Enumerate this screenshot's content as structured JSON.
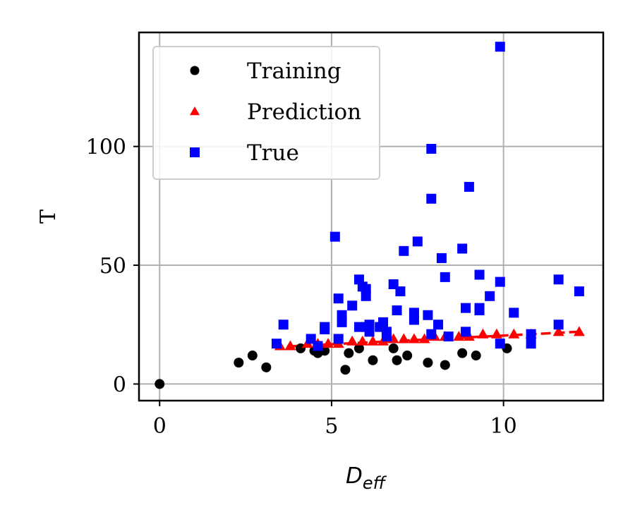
{
  "chart_data": {
    "type": "scatter",
    "xlabel": "D",
    "xlabel_sub": "eff",
    "ylabel": "T",
    "xlim": [
      -0.6,
      12.9
    ],
    "ylim": [
      -7,
      148
    ],
    "xticks": [
      0,
      5,
      10
    ],
    "yticks": [
      0,
      50,
      100
    ],
    "grid": true,
    "legend_position": "top-left",
    "series": [
      {
        "name": "Training",
        "marker": "circle",
        "color": "#000000",
        "points": [
          [
            0,
            0
          ],
          [
            2.3,
            9
          ],
          [
            2.7,
            12
          ],
          [
            3.1,
            7
          ],
          [
            4.1,
            15
          ],
          [
            4.5,
            14
          ],
          [
            4.6,
            13
          ],
          [
            4.8,
            14
          ],
          [
            5.5,
            13
          ],
          [
            5.8,
            15
          ],
          [
            5.4,
            6
          ],
          [
            6.2,
            10
          ],
          [
            6.8,
            15
          ],
          [
            6.9,
            10
          ],
          [
            7.2,
            12
          ],
          [
            7.8,
            9
          ],
          [
            8.3,
            8
          ],
          [
            8.8,
            13
          ],
          [
            9.2,
            12
          ],
          [
            10.1,
            15
          ]
        ]
      },
      {
        "name": "Prediction",
        "marker": "triangle",
        "color": "#ff0000",
        "points": [
          [
            3.5,
            16
          ],
          [
            3.8,
            16
          ],
          [
            4.3,
            17
          ],
          [
            4.6,
            17
          ],
          [
            4.9,
            17
          ],
          [
            5.2,
            17
          ],
          [
            5.6,
            18
          ],
          [
            5.9,
            18
          ],
          [
            6.2,
            18
          ],
          [
            6.5,
            18
          ],
          [
            6.8,
            19
          ],
          [
            7.1,
            19
          ],
          [
            7.4,
            19
          ],
          [
            7.7,
            19
          ],
          [
            8.0,
            20
          ],
          [
            8.3,
            20
          ],
          [
            8.7,
            20
          ],
          [
            9.0,
            20
          ],
          [
            9.4,
            21
          ],
          [
            9.8,
            21
          ],
          [
            10.3,
            21
          ],
          [
            10.8,
            21
          ],
          [
            11.6,
            22
          ],
          [
            12.2,
            22
          ]
        ],
        "fit_line": [
          [
            3.3,
            15.5
          ],
          [
            12.2,
            22
          ]
        ]
      },
      {
        "name": "True",
        "marker": "square",
        "color": "#0000ff",
        "points": [
          [
            3.4,
            17
          ],
          [
            3.6,
            25
          ],
          [
            4.4,
            19
          ],
          [
            4.6,
            16
          ],
          [
            4.8,
            24
          ],
          [
            4.8,
            23
          ],
          [
            5.1,
            62
          ],
          [
            5.2,
            36
          ],
          [
            5.2,
            19
          ],
          [
            5.3,
            29
          ],
          [
            5.3,
            26
          ],
          [
            5.6,
            33
          ],
          [
            5.8,
            44
          ],
          [
            5.8,
            24
          ],
          [
            5.9,
            41
          ],
          [
            6.0,
            37
          ],
          [
            6.0,
            40
          ],
          [
            6.0,
            24
          ],
          [
            6.1,
            22
          ],
          [
            6.1,
            25
          ],
          [
            6.4,
            24
          ],
          [
            6.5,
            26
          ],
          [
            6.6,
            22
          ],
          [
            6.6,
            20
          ],
          [
            6.8,
            42
          ],
          [
            6.9,
            31
          ],
          [
            7.0,
            39
          ],
          [
            7.1,
            56
          ],
          [
            7.4,
            30
          ],
          [
            7.4,
            27
          ],
          [
            7.5,
            60
          ],
          [
            7.8,
            29
          ],
          [
            7.9,
            78
          ],
          [
            7.9,
            99
          ],
          [
            7.9,
            21
          ],
          [
            8.1,
            25
          ],
          [
            8.2,
            53
          ],
          [
            8.3,
            45
          ],
          [
            8.4,
            20
          ],
          [
            8.8,
            57
          ],
          [
            8.9,
            32
          ],
          [
            8.9,
            22
          ],
          [
            9.0,
            83
          ],
          [
            9.3,
            31
          ],
          [
            9.3,
            32
          ],
          [
            9.3,
            46
          ],
          [
            9.6,
            37
          ],
          [
            9.9,
            43
          ],
          [
            9.9,
            17
          ],
          [
            9.9,
            142
          ],
          [
            10.3,
            30
          ],
          [
            10.8,
            21
          ],
          [
            10.8,
            17
          ],
          [
            11.6,
            44
          ],
          [
            11.6,
            25
          ],
          [
            12.2,
            39
          ]
        ]
      }
    ]
  }
}
